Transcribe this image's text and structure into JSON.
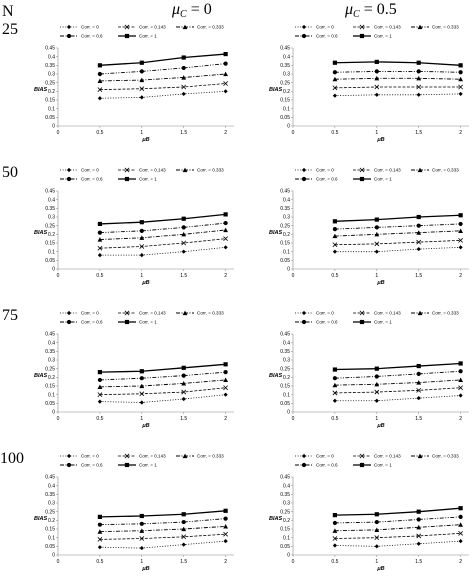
{
  "figure": {
    "n_header": "N",
    "col_headers": [
      "μC = 0",
      "μC = 0.5"
    ],
    "col_header_parts": [
      {
        "sym": "μ",
        "sub": "C",
        "rest": " = 0"
      },
      {
        "sym": "μ",
        "sub": "C",
        "rest": " = 0.5"
      }
    ],
    "row_labels": [
      "25",
      "50",
      "75",
      "100"
    ]
  },
  "chart_data": [
    {
      "id": "r0c0",
      "type": "line",
      "N": "25",
      "mu_c": "0",
      "xlabel": "μB",
      "ylabel": "BIAS",
      "x": [
        0.5,
        1,
        1.5,
        2
      ],
      "xticks": [
        0,
        0.5,
        1,
        1.5,
        2
      ],
      "xlim": [
        0,
        2.1
      ],
      "ylim": [
        0,
        0.45
      ],
      "yticks": [
        0,
        0.05,
        0.1,
        0.15,
        0.2,
        0.25,
        0.3,
        0.35,
        0.4,
        0.45
      ],
      "legend": [
        "Corr. = 0",
        "Corr. = 0.143",
        "Corr. = 0.333",
        "Corr. = 0.6",
        "Corr. = 1"
      ],
      "series": [
        {
          "name": "Corr. = 0",
          "values": [
            0.16,
            0.165,
            0.185,
            0.2
          ]
        },
        {
          "name": "Corr. = 0.143",
          "values": [
            0.21,
            0.215,
            0.225,
            0.245
          ]
        },
        {
          "name": "Corr. = 0.333",
          "values": [
            0.26,
            0.265,
            0.28,
            0.3
          ]
        },
        {
          "name": "Corr. = 0.6",
          "values": [
            0.3,
            0.315,
            0.335,
            0.36
          ]
        },
        {
          "name": "Corr. = 1",
          "values": [
            0.35,
            0.365,
            0.395,
            0.415
          ]
        }
      ]
    },
    {
      "id": "r0c1",
      "type": "line",
      "N": "25",
      "mu_c": "0.5",
      "xlabel": "μB",
      "ylabel": "BIAS",
      "x": [
        0.5,
        1,
        1.5,
        2
      ],
      "xticks": [
        0,
        0.5,
        1,
        1.5,
        2
      ],
      "xlim": [
        0,
        2.1
      ],
      "ylim": [
        0,
        0.45
      ],
      "yticks": [
        0,
        0.05,
        0.1,
        0.15,
        0.2,
        0.25,
        0.3,
        0.35,
        0.4,
        0.45
      ],
      "legend": [
        "Corr. = 0",
        "Corr. = 0.143",
        "Corr. = 0.333",
        "Corr. = 0.6",
        "Corr. = 1"
      ],
      "series": [
        {
          "name": "Corr. = 0",
          "values": [
            0.175,
            0.18,
            0.18,
            0.185
          ]
        },
        {
          "name": "Corr. = 0.143",
          "values": [
            0.22,
            0.225,
            0.225,
            0.225
          ]
        },
        {
          "name": "Corr. = 0.333",
          "values": [
            0.27,
            0.275,
            0.275,
            0.27
          ]
        },
        {
          "name": "Corr. = 0.6",
          "values": [
            0.31,
            0.315,
            0.315,
            0.31
          ]
        },
        {
          "name": "Corr. = 1",
          "values": [
            0.365,
            0.37,
            0.365,
            0.35
          ]
        }
      ]
    },
    {
      "id": "r1c0",
      "type": "line",
      "N": "50",
      "mu_c": "0",
      "xlabel": "μB",
      "ylabel": "BIAS",
      "x": [
        0.5,
        1,
        1.5,
        2
      ],
      "xticks": [
        0,
        0.5,
        1,
        1.5,
        2
      ],
      "xlim": [
        0,
        2.1
      ],
      "ylim": [
        0,
        0.45
      ],
      "yticks": [
        0,
        0.05,
        0.1,
        0.15,
        0.2,
        0.25,
        0.3,
        0.35,
        0.4,
        0.45
      ],
      "legend": [
        "Corr. = 0",
        "Corr. = 0.143",
        "Corr. = 0.333",
        "Corr. = 0.6",
        "Corr. = 1"
      ],
      "series": [
        {
          "name": "Corr. = 0",
          "values": [
            0.08,
            0.08,
            0.1,
            0.125
          ]
        },
        {
          "name": "Corr. = 0.143",
          "values": [
            0.12,
            0.13,
            0.15,
            0.175
          ]
        },
        {
          "name": "Corr. = 0.333",
          "values": [
            0.17,
            0.18,
            0.2,
            0.225
          ]
        },
        {
          "name": "Corr. = 0.6",
          "values": [
            0.21,
            0.22,
            0.24,
            0.265
          ]
        },
        {
          "name": "Corr. = 1",
          "values": [
            0.26,
            0.27,
            0.29,
            0.315
          ]
        }
      ]
    },
    {
      "id": "r1c1",
      "type": "line",
      "N": "50",
      "mu_c": "0.5",
      "xlabel": "μB",
      "ylabel": "BIAS",
      "x": [
        0.5,
        1,
        1.5,
        2
      ],
      "xticks": [
        0,
        0.5,
        1,
        1.5,
        2
      ],
      "xlim": [
        0,
        2.1
      ],
      "ylim": [
        0,
        0.45
      ],
      "yticks": [
        0,
        0.05,
        0.1,
        0.15,
        0.2,
        0.25,
        0.3,
        0.35,
        0.4,
        0.45
      ],
      "legend": [
        "Corr. = 0",
        "Corr. = 0.143",
        "Corr. = 0.333",
        "Corr. = 0.6",
        "Corr. = 1"
      ],
      "series": [
        {
          "name": "Corr. = 0",
          "values": [
            0.1,
            0.1,
            0.115,
            0.125
          ]
        },
        {
          "name": "Corr. = 0.143",
          "values": [
            0.14,
            0.145,
            0.155,
            0.165
          ]
        },
        {
          "name": "Corr. = 0.333",
          "values": [
            0.19,
            0.2,
            0.21,
            0.22
          ]
        },
        {
          "name": "Corr. = 0.6",
          "values": [
            0.23,
            0.24,
            0.25,
            0.26
          ]
        },
        {
          "name": "Corr. = 1",
          "values": [
            0.275,
            0.285,
            0.3,
            0.31
          ]
        }
      ]
    },
    {
      "id": "r2c0",
      "type": "line",
      "N": "75",
      "mu_c": "0",
      "xlabel": "μB",
      "ylabel": "BIAS",
      "x": [
        0.5,
        1,
        1.5,
        2
      ],
      "xticks": [
        0,
        0.5,
        1,
        1.5,
        2
      ],
      "xlim": [
        0,
        2.1
      ],
      "ylim": [
        0,
        0.45
      ],
      "yticks": [
        0,
        0.05,
        0.1,
        0.15,
        0.2,
        0.25,
        0.3,
        0.35,
        0.4,
        0.45
      ],
      "legend": [
        "Corr. = 0",
        "Corr. = 0.143",
        "Corr. = 0.333",
        "Corr. = 0.6",
        "Corr. = 1"
      ],
      "series": [
        {
          "name": "Corr. = 0",
          "values": [
            0.06,
            0.055,
            0.075,
            0.1
          ]
        },
        {
          "name": "Corr. = 0.143",
          "values": [
            0.1,
            0.105,
            0.115,
            0.14
          ]
        },
        {
          "name": "Corr. = 0.333",
          "values": [
            0.145,
            0.15,
            0.165,
            0.185
          ]
        },
        {
          "name": "Corr. = 0.6",
          "values": [
            0.185,
            0.195,
            0.21,
            0.23
          ]
        },
        {
          "name": "Corr. = 1",
          "values": [
            0.23,
            0.235,
            0.255,
            0.275
          ]
        }
      ]
    },
    {
      "id": "r2c1",
      "type": "line",
      "N": "75",
      "mu_c": "0.5",
      "xlabel": "μB",
      "ylabel": "BIAS",
      "x": [
        0.5,
        1,
        1.5,
        2
      ],
      "xticks": [
        0,
        0.5,
        1,
        1.5,
        2
      ],
      "xlim": [
        0,
        2.1
      ],
      "ylim": [
        0,
        0.45
      ],
      "yticks": [
        0,
        0.05,
        0.1,
        0.15,
        0.2,
        0.25,
        0.3,
        0.35,
        0.4,
        0.45
      ],
      "legend": [
        "Corr. = 0",
        "Corr. = 0.143",
        "Corr. = 0.333",
        "Corr. = 0.6",
        "Corr. = 1"
      ],
      "series": [
        {
          "name": "Corr. = 0",
          "values": [
            0.065,
            0.065,
            0.08,
            0.095
          ]
        },
        {
          "name": "Corr. = 0.143",
          "values": [
            0.11,
            0.115,
            0.125,
            0.14
          ]
        },
        {
          "name": "Corr. = 0.333",
          "values": [
            0.155,
            0.16,
            0.17,
            0.185
          ]
        },
        {
          "name": "Corr. = 0.6",
          "values": [
            0.195,
            0.205,
            0.22,
            0.235
          ]
        },
        {
          "name": "Corr. = 1",
          "values": [
            0.245,
            0.25,
            0.265,
            0.28
          ]
        }
      ]
    },
    {
      "id": "r3c0",
      "type": "line",
      "N": "100",
      "mu_c": "0",
      "xlabel": "μB",
      "ylabel": "BIAS",
      "x": [
        0.5,
        1,
        1.5,
        2
      ],
      "xticks": [
        0,
        0.5,
        1,
        1.5,
        2
      ],
      "xlim": [
        0,
        2.1
      ],
      "ylim": [
        0,
        0.45
      ],
      "yticks": [
        0,
        0.05,
        0.1,
        0.15,
        0.2,
        0.25,
        0.3,
        0.35,
        0.4,
        0.45
      ],
      "legend": [
        "Corr. = 0",
        "Corr. = 0.143",
        "Corr. = 0.333",
        "Corr. = 0.6",
        "Corr. = 1"
      ],
      "series": [
        {
          "name": "Corr. = 0",
          "values": [
            0.045,
            0.04,
            0.06,
            0.08
          ]
        },
        {
          "name": "Corr. = 0.143",
          "values": [
            0.09,
            0.095,
            0.105,
            0.12
          ]
        },
        {
          "name": "Corr. = 0.333",
          "values": [
            0.135,
            0.14,
            0.15,
            0.165
          ]
        },
        {
          "name": "Corr. = 0.6",
          "values": [
            0.175,
            0.18,
            0.19,
            0.21
          ]
        },
        {
          "name": "Corr. = 1",
          "values": [
            0.22,
            0.225,
            0.235,
            0.255
          ]
        }
      ]
    },
    {
      "id": "r3c1",
      "type": "line",
      "N": "100",
      "mu_c": "0.5",
      "xlabel": "μB",
      "ylabel": "BIAS",
      "x": [
        0.5,
        1,
        1.5,
        2
      ],
      "xticks": [
        0,
        0.5,
        1,
        1.5,
        2
      ],
      "xlim": [
        0,
        2.1
      ],
      "ylim": [
        0,
        0.45
      ],
      "yticks": [
        0,
        0.05,
        0.1,
        0.15,
        0.2,
        0.25,
        0.3,
        0.35,
        0.4,
        0.45
      ],
      "legend": [
        "Corr. = 0",
        "Corr. = 0.143",
        "Corr. = 0.333",
        "Corr. = 0.6",
        "Corr. = 1"
      ],
      "series": [
        {
          "name": "Corr. = 0",
          "values": [
            0.055,
            0.05,
            0.065,
            0.08
          ]
        },
        {
          "name": "Corr. = 0.143",
          "values": [
            0.095,
            0.1,
            0.11,
            0.125
          ]
        },
        {
          "name": "Corr. = 0.333",
          "values": [
            0.14,
            0.145,
            0.16,
            0.175
          ]
        },
        {
          "name": "Corr. = 0.6",
          "values": [
            0.185,
            0.19,
            0.205,
            0.22
          ]
        },
        {
          "name": "Corr. = 1",
          "values": [
            0.23,
            0.235,
            0.25,
            0.27
          ]
        }
      ]
    }
  ]
}
